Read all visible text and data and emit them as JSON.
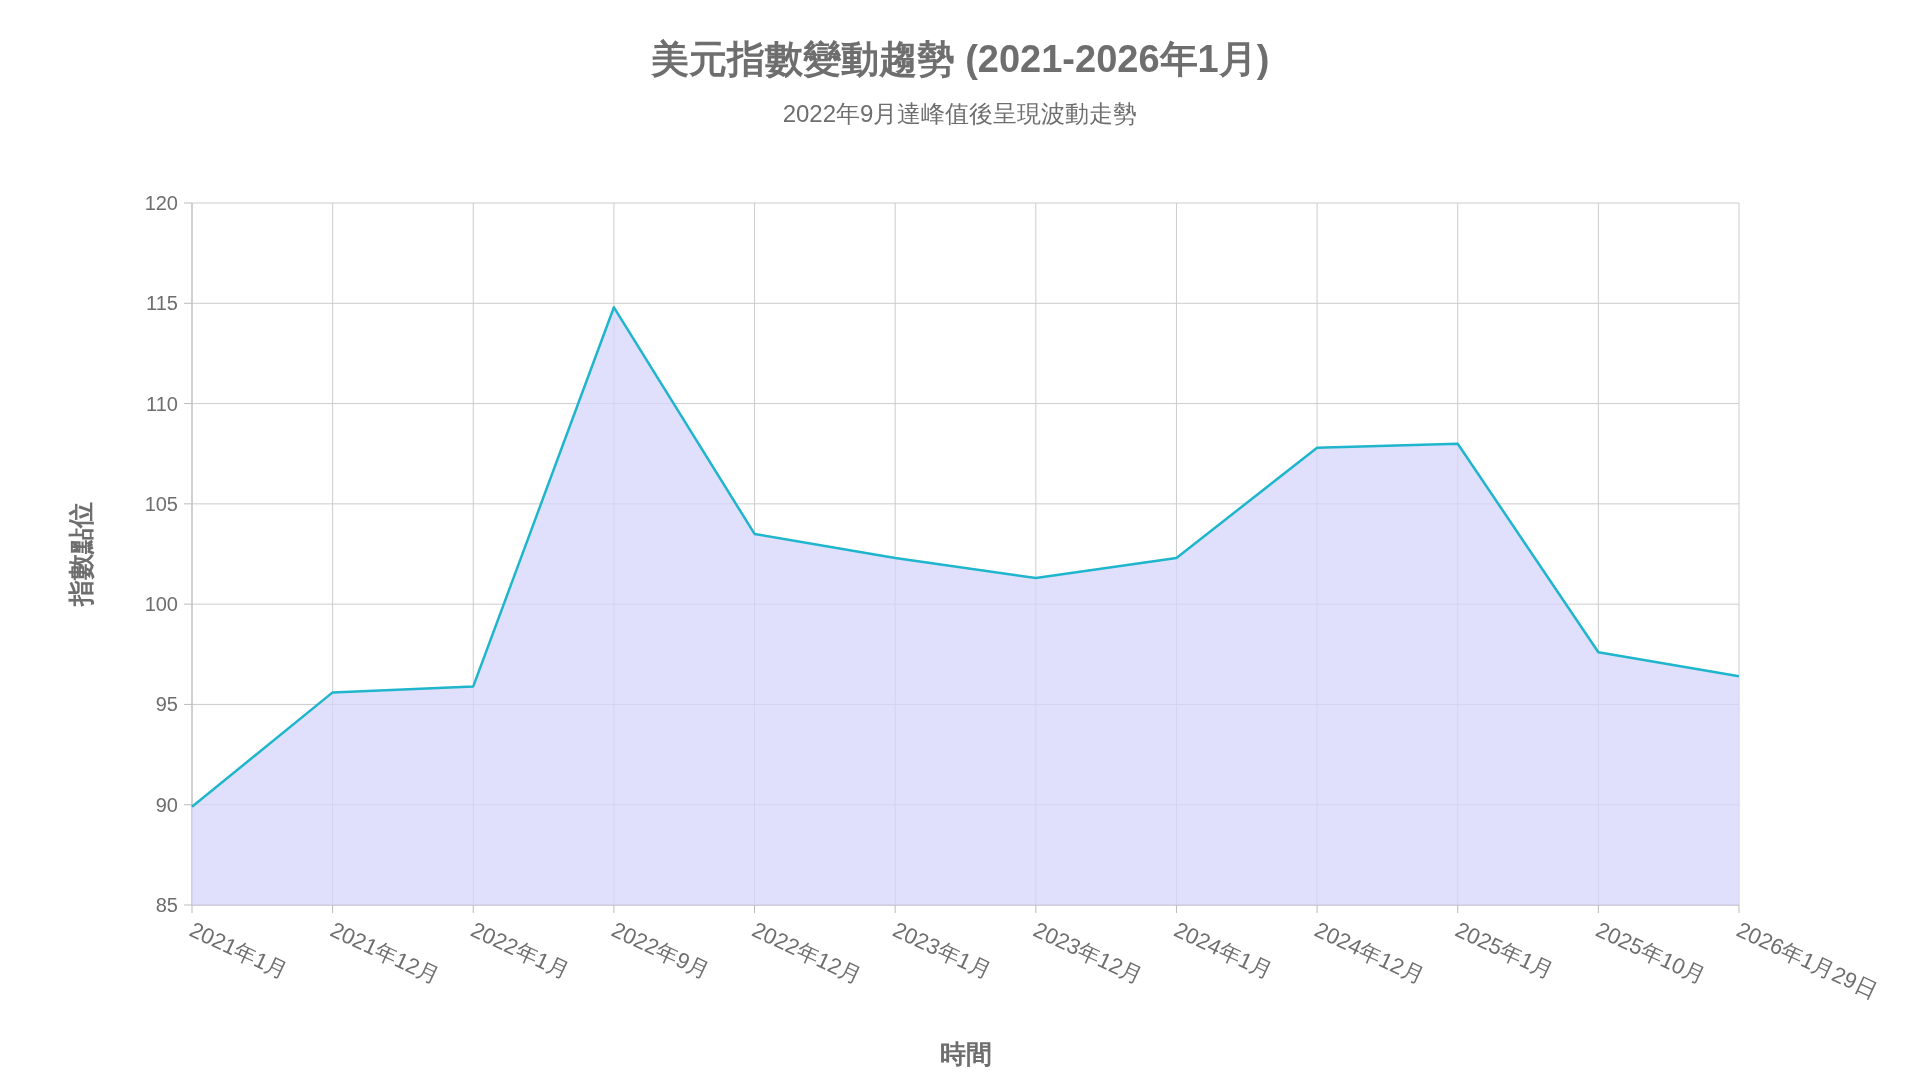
{
  "chart_data": {
    "type": "area",
    "title": "美元指數變動趨勢 (2021-2026年1月)",
    "subtitle": "2022年9月達峰值後呈現波動走勢",
    "xlabel": "時間",
    "ylabel": "指數點位",
    "categories": [
      "2021年1月",
      "2021年12月",
      "2022年1月",
      "2022年9月",
      "2022年12月",
      "2023年1月",
      "2023年12月",
      "2024年1月",
      "2024年12月",
      "2025年1月",
      "2025年10月",
      "2026年1月29日"
    ],
    "series": [
      {
        "color": "#1fb5cc",
        "values": [
          89.9,
          95.6,
          95.9,
          114.8,
          103.5,
          102.3,
          101.3,
          102.3,
          107.8,
          108.0,
          97.6,
          96.4
        ]
      }
    ],
    "ylim": [
      85,
      120
    ],
    "yticks": [
      85,
      90,
      95,
      100,
      105,
      110,
      115,
      120
    ],
    "grid": true
  }
}
